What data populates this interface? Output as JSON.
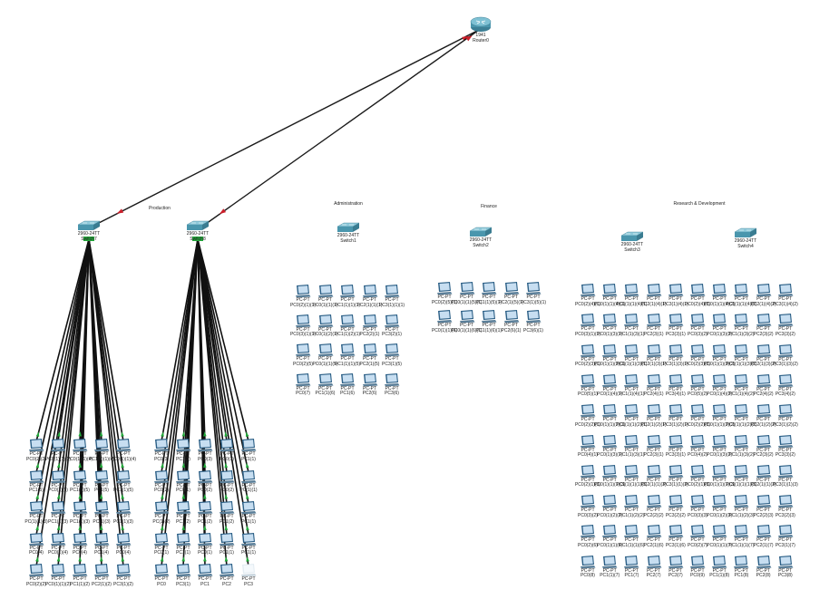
{
  "areas": {
    "production": "Production",
    "administration": "Administration",
    "finance": "Finance",
    "research": "Research & Development"
  },
  "router": {
    "model": "1941",
    "name": "Router0"
  },
  "switches": [
    {
      "id": "switch7",
      "model": "2960-24TT",
      "name": "Switch7"
    },
    {
      "id": "switch8",
      "model": "2960-24TT",
      "name": "Switch8"
    },
    {
      "id": "switch1",
      "model": "2960-24TT",
      "name": "Switch1"
    },
    {
      "id": "switch2",
      "model": "2960-24TT",
      "name": "Switch2"
    },
    {
      "id": "switch3",
      "model": "2960-24TT",
      "name": "Switch3"
    },
    {
      "id": "switch4",
      "model": "2960-24TT",
      "name": "Switch4"
    }
  ],
  "pc_model": "PC-PT",
  "groups": {
    "sw7": {
      "rows": [
        [
          "PC0(2)(2)",
          "PC0(1)(1)(2)",
          "PC0(1)(1)(4)",
          "PC1(1)(1)(4)",
          "PC0(1)(1)(4)"
        ],
        [
          "PC1(5)",
          "PC0(1)(5)",
          "PC1(1)(5)",
          "PC1(5)",
          "PC1(1)(5)"
        ],
        [
          "PC(1)(1)(3)",
          "PC1(1)(3)",
          "PC1(1)(3)",
          "PC(1)(3)",
          "PC1(1)(3)"
        ],
        [
          "PC0(4)",
          "PC0(1)(4)",
          "PC0(4)",
          "PC1(4)",
          "PC0(4)"
        ],
        [
          "PC0(2)(2)",
          "PC0(1)(1)(2)",
          "PC1(1)(2)",
          "PC2(1)(2)",
          "PC3(1)(2)"
        ]
      ]
    },
    "sw8": {
      "rows": [
        [
          "PC0(3)",
          "PC1(3)",
          "PC0(3)",
          "PC0(1)",
          "PC1(1)"
        ],
        [
          "PC0(2)",
          "PC0(1)",
          "PC0(2)",
          "PC0(2)",
          "PC(1)(1)"
        ],
        [
          "PC(1)(2)",
          "PC1(2)",
          "PC1(2)",
          "PC1(2)",
          "PC1(1)"
        ],
        [
          "PC0(1)",
          "PC1(1)",
          "PC0(1)",
          "PC1(1)",
          "PC1(1)"
        ],
        [
          "PC0",
          "PC3(1)",
          "PC1",
          "PC2",
          "PC3"
        ]
      ]
    },
    "admin": {
      "rows": [
        [
          "PC0(2)(1)(1)",
          "PC0(1)(1)(1)",
          "PC1(1)(1)(1)",
          "PC2(1)(1)(1)",
          "PC3(1)(1)(1)"
        ],
        [
          "PC0(3)(1)(1)",
          "PC0(1)(2)(1)",
          "PC1(1)(2)(1)",
          "PC2(2)(1)",
          "PC3(2)(1)"
        ],
        [
          "PC0(2)(5)",
          "PC0(1)(1)(5)",
          "PC1(1)(1)(5)",
          "PC2(1)(5)",
          "PC3(1)(5)"
        ],
        [
          "PC0(7)",
          "PC1(1)(6)",
          "PC1(6)",
          "PC2(6)",
          "PC3(6)"
        ]
      ]
    },
    "finance": {
      "rows": [
        [
          "PC0(2)(5)(1)",
          "PC0(1)(1)(5)(1)",
          "PC1(1)(5)(1)",
          "PC2(1)(5)(1)",
          "PC3(1)(5)(1)"
        ],
        [
          "PC0(1)(1)(6)",
          "PC0(1)(1)(6)(1)",
          "PC1(1)(6)(1)",
          "PC2(6)(1)",
          "PC3(6)(1)"
        ]
      ]
    },
    "rnd": {
      "rows": [
        [
          "PC0(2)(4)(1)",
          "PC0(1)(1)(4)(1)",
          "PC1(1)(1)(4)(1)",
          "PC2(1)(4)(1)",
          "PC3(1)(4)(1)",
          "PC0(2)(4)(2)",
          "PC0(1)(1)(4)(2)",
          "PC1(1)(1)(4)(2)",
          "PC2(1)(4)(2)",
          "PC3(1)(4)(2)"
        ],
        [
          "PC0(3)(1)(1)",
          "PC0(1)(3)(1)",
          "PC1(1)(3)(1)",
          "PC2(3)(1)",
          "PC3(3)(1)",
          "PC0(3)(2)",
          "PC0(1)(3)(2)",
          "PC1(1)(3)(2)",
          "PC2(3)(2)",
          "PC3(3)(2)"
        ],
        [
          "PC0(2)(3)(1)",
          "PC0(1)(1)(3)(1)",
          "PC1(1)(1)(3)(1)",
          "PC2(1)(3)(1)",
          "PC3(1)(3)(1)",
          "PC0(2)(3)(2)",
          "PC0(1)(1)(3)(2)",
          "PC1(1)(1)(3)(2)",
          "PC2(1)(3)(2)",
          "PC3(1)(3)(2)"
        ],
        [
          "PC0(5)(1)",
          "PC0(1)(4)(1)",
          "PC1(1)(4)(1)",
          "PC2(4)(1)",
          "PC3(4)(1)",
          "PC0(5)(2)",
          "PC0(1)(4)(2)",
          "PC1(1)(4)(2)",
          "PC2(4)(2)",
          "PC3(4)(2)"
        ],
        [
          "PC0(2)(2)(1)",
          "PC0(1)(1)(2)(1)",
          "PC1(1)(1)(2)(1)",
          "PC2(1)(2)(1)",
          "PC3(1)(2)(1)",
          "PC0(2)(2)(2)",
          "PC0(1)(1)(2)(2)",
          "PC1(1)(1)(2)(2)",
          "PC2(1)(2)(2)",
          "PC3(1)(2)(2)"
        ],
        [
          "PC0(4)(1)",
          "PC0(1)(3)(1)",
          "PC1(1)(3)(1)",
          "PC2(3)(1)",
          "PC3(3)(1)",
          "PC0(4)(2)",
          "PC0(1)(3)(2)",
          "PC1(1)(3)(2)",
          "PC2(3)(2)",
          "PC3(3)(2)"
        ],
        [
          "PC0(2)(1)(3)",
          "PC0(1)(1)(1)(3)",
          "PC1(1)(1)(1)(3)",
          "PC2(1)(1)(3)",
          "PC3(1)(1)(3)",
          "PC0(2)(1)(3)",
          "PC0(1)(1)(1)(3)",
          "PC1(1)(1)(1)(3)",
          "PC2(1)(1)(3)",
          "PC3(1)(1)(3)"
        ],
        [
          "PC0(3)(2)",
          "PC0(1)(2)(2)",
          "PC1(1)(2)(2)",
          "PC2(2)(2)",
          "PC3(2)(2)",
          "PC0(3)(3)",
          "PC0(1)(2)(3)",
          "PC1(1)(2)(3)",
          "PC2(2)(3)",
          "PC3(2)(3)"
        ],
        [
          "PC0(2)(6)",
          "PC0(1)(1)(6)",
          "PC1(1)(1)(6)",
          "PC2(1)(6)",
          "PC3(1)(6)",
          "PC0(2)(7)",
          "PC0(1)(1)(7)",
          "PC1(1)(1)(7)",
          "PC2(1)(7)",
          "PC3(1)(7)"
        ],
        [
          "PC0(8)",
          "PC1(1)(7)",
          "PC1(7)",
          "PC2(7)",
          "PC3(7)",
          "PC0(9)",
          "PC1(1)(8)",
          "PC1(8)",
          "PC2(8)",
          "PC3(8)"
        ]
      ]
    }
  },
  "colors": {
    "link": "#111111",
    "wan_link": "#1a1a1a",
    "arrow": "#cc1f2b",
    "port_up": "#22a83a",
    "device_teal": "#4a96ad",
    "monitor_frame": "#2b5f86",
    "monitor_screen": "#c7def1"
  }
}
